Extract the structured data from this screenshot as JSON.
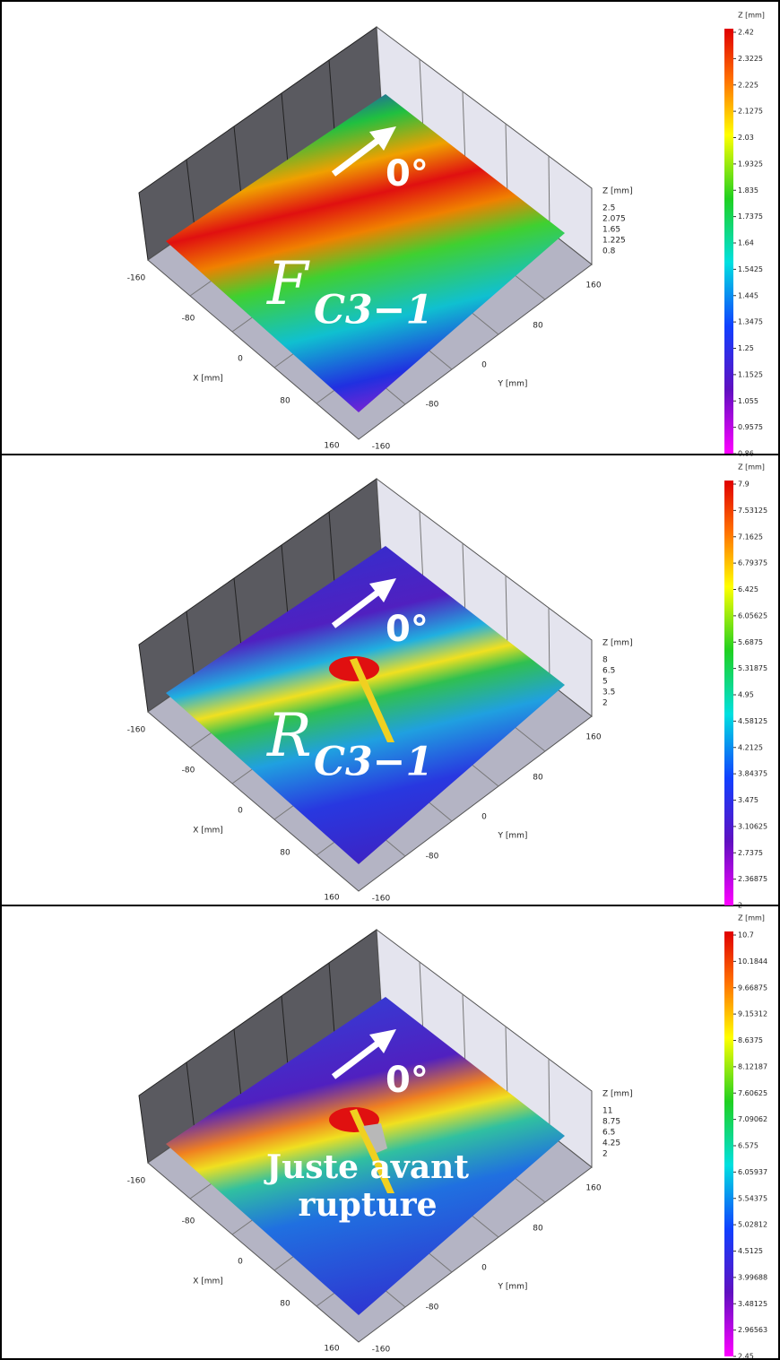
{
  "panels": [
    {
      "colorbar": {
        "title": "Z [mm]",
        "labels": [
          "2.42",
          "2.3225",
          "2.225",
          "2.1275",
          "2.03",
          "1.9325",
          "1.835",
          "1.7375",
          "1.64",
          "1.5425",
          "1.445",
          "1.3475",
          "1.25",
          "1.1525",
          "1.055",
          "0.9575",
          "0.86"
        ]
      },
      "z_axis": {
        "title": "Z [mm]",
        "labels": [
          "2.5",
          "2.075",
          "1.65",
          "1.225",
          "0.8"
        ]
      },
      "x_axis": {
        "title": "X [mm]",
        "ticks": [
          "-160",
          "-80",
          "0",
          "80",
          "160"
        ]
      },
      "y_axis": {
        "title": "Y [mm]",
        "ticks": [
          "160",
          "80",
          "0",
          "-80",
          "-160"
        ]
      },
      "direction": "0°",
      "label": {
        "main": "F",
        "sub": "C3−1"
      }
    },
    {
      "colorbar": {
        "title": "Z [mm]",
        "labels": [
          "7.9",
          "7.53125",
          "7.1625",
          "6.79375",
          "6.425",
          "6.05625",
          "5.6875",
          "5.31875",
          "4.95",
          "4.58125",
          "4.2125",
          "3.84375",
          "3.475",
          "3.10625",
          "2.7375",
          "2.36875",
          "2"
        ]
      },
      "z_axis": {
        "title": "Z [mm]",
        "labels": [
          "8",
          "6.5",
          "5",
          "3.5",
          "2"
        ]
      },
      "x_axis": {
        "title": "X [mm]",
        "ticks": [
          "-160",
          "-80",
          "0",
          "80",
          "160"
        ]
      },
      "y_axis": {
        "title": "Y [mm]",
        "ticks": [
          "160",
          "80",
          "0",
          "-80",
          "-160"
        ]
      },
      "direction": "0°",
      "label": {
        "main": "R",
        "sub": "C3−1"
      }
    },
    {
      "colorbar": {
        "title": "Z [mm]",
        "labels": [
          "10.7",
          "10.1844",
          "9.66875",
          "9.15312",
          "8.6375",
          "8.12187",
          "7.60625",
          "7.09062",
          "6.575",
          "6.05937",
          "5.54375",
          "5.02812",
          "4.5125",
          "3.99688",
          "3.48125",
          "2.96563",
          "2.45"
        ]
      },
      "z_axis": {
        "title": "Z [mm]",
        "labels": [
          "11",
          "8.75",
          "6.5",
          "4.25",
          "2"
        ]
      },
      "x_axis": {
        "title": "X [mm]",
        "ticks": [
          "-160",
          "-80",
          "0",
          "80",
          "160"
        ]
      },
      "y_axis": {
        "title": "Y [mm]",
        "ticks": [
          "160",
          "80",
          "0",
          "-80",
          "-160"
        ]
      },
      "direction": "0°",
      "label": {
        "lines": [
          "Juste avant",
          "rupture"
        ]
      }
    }
  ]
}
